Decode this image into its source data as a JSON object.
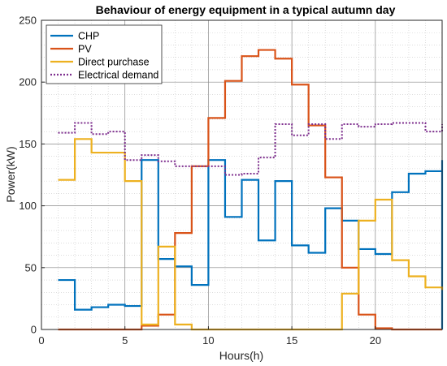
{
  "chart_data": {
    "type": "line",
    "title": "Behaviour of energy equipment in a typical autumn day",
    "xlabel": "Hours(h)",
    "ylabel": "Power(kW)",
    "xlim": [
      0,
      24
    ],
    "ylim": [
      0,
      250
    ],
    "xticks": [
      0,
      5,
      10,
      15,
      20
    ],
    "yticks": [
      0,
      50,
      100,
      150,
      200,
      250
    ],
    "grid": true,
    "minor_grid": true,
    "legend_position": "top-left",
    "step": "post",
    "x": [
      1,
      2,
      3,
      4,
      5,
      6,
      7,
      8,
      9,
      10,
      11,
      12,
      13,
      14,
      15,
      16,
      17,
      18,
      19,
      20,
      21,
      22,
      23,
      24
    ],
    "series": [
      {
        "name": "CHP",
        "color": "#0072BD",
        "dash": "solid",
        "values": [
          40,
          16,
          18,
          20,
          19,
          137,
          57,
          51,
          36,
          137,
          91,
          121,
          72,
          120,
          68,
          62,
          98,
          88,
          65,
          61,
          111,
          126,
          128,
          137
        ]
      },
      {
        "name": "PV",
        "color": "#D95319",
        "dash": "solid",
        "values": [
          0,
          0,
          0,
          0,
          0,
          3,
          12,
          78,
          132,
          171,
          201,
          221,
          226,
          219,
          198,
          165,
          123,
          50,
          12,
          1,
          0,
          0,
          0,
          0
        ]
      },
      {
        "name": "Direct purchase",
        "color": "#EDB120",
        "dash": "solid",
        "values": [
          121,
          154,
          143,
          143,
          120,
          4,
          67,
          4,
          0,
          0,
          0,
          0,
          0,
          0,
          0,
          0,
          0,
          29,
          88,
          105,
          56,
          43,
          34,
          32
        ]
      },
      {
        "name": "Electrical demand",
        "color": "#7E2F8E",
        "dash": "dotted",
        "values": [
          159,
          167,
          158,
          160,
          137,
          141,
          136,
          132,
          132,
          132,
          125,
          126,
          139,
          166,
          157,
          166,
          154,
          166,
          164,
          166,
          167,
          167,
          160,
          166
        ]
      }
    ]
  }
}
